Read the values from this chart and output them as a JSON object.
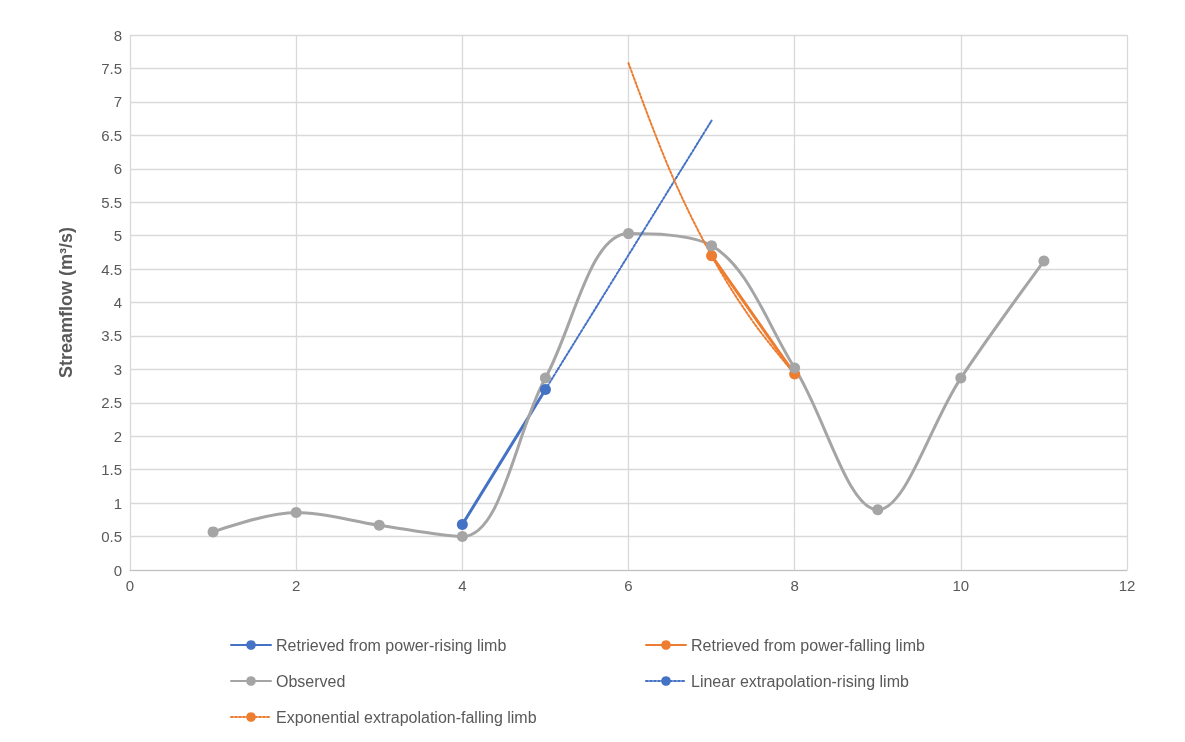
{
  "chart_data": {
    "type": "line",
    "ylabel": "Streamflow (m³/s)",
    "xlim": [
      0,
      12
    ],
    "xticks": [
      0,
      2,
      4,
      6,
      8,
      10,
      12
    ],
    "ylim": [
      0,
      8
    ],
    "yticks": [
      0,
      0.5,
      1,
      1.5,
      2,
      2.5,
      3,
      3.5,
      4,
      4.5,
      5,
      5.5,
      6,
      6.5,
      7,
      7.5,
      8
    ],
    "grid": true,
    "legend": "bottom",
    "series": [
      {
        "name": "Retrieved from power-rising limb",
        "color": "#4472c4",
        "x": [
          4,
          5
        ],
        "values": [
          0.68,
          2.7
        ],
        "marker": "circle",
        "line_style": "solid"
      },
      {
        "name": "Retrieved from power-falling limb",
        "color": "#ed7d31",
        "x": [
          7,
          8
        ],
        "values": [
          4.7,
          2.93
        ],
        "marker": "circle",
        "line_style": "solid"
      },
      {
        "name": "Observed",
        "color": "#a5a5a5",
        "x": [
          1,
          2,
          3,
          4,
          5,
          6,
          7,
          8,
          9,
          10,
          11
        ],
        "values": [
          0.57,
          0.86,
          0.67,
          0.5,
          2.87,
          5.03,
          4.85,
          3.02,
          0.9,
          2.87,
          4.62
        ],
        "marker": "circle",
        "line_style": "solid"
      },
      {
        "name": "Linear extrapolation-rising limb",
        "color": "#4472c4",
        "x": [
          5,
          7
        ],
        "values": [
          2.7,
          6.72
        ],
        "marker": "none",
        "line_style": "dotted"
      },
      {
        "name": "Exponential extrapolation-falling limb",
        "color": "#ed7d31",
        "x": [
          6,
          6.5,
          7,
          7.5,
          8
        ],
        "values": [
          7.58,
          5.97,
          4.7,
          3.71,
          2.93
        ],
        "marker": "none",
        "line_style": "dotted"
      }
    ]
  }
}
